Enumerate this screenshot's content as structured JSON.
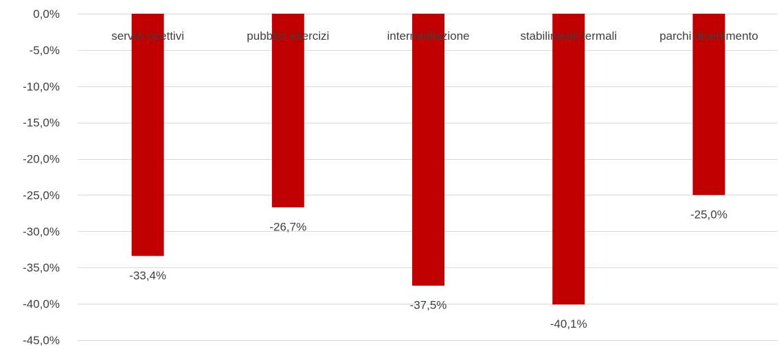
{
  "chart_data": {
    "type": "bar",
    "title": "",
    "xlabel": "",
    "ylabel": "",
    "categories": [
      "servizi ricettivi",
      "pubblici esercizi",
      "intermediazione",
      "stabilimenti termali",
      "parchi divertimento"
    ],
    "values": [
      -33.4,
      -26.7,
      -37.5,
      -40.1,
      -25.0
    ],
    "data_labels": [
      "-33,4%",
      "-26,7%",
      "-37,5%",
      "-40,1%",
      "-25,0%"
    ],
    "ylim": [
      -45,
      0
    ],
    "yticks": [
      0,
      -5,
      -10,
      -15,
      -20,
      -25,
      -30,
      -35,
      -40,
      -45
    ],
    "ytick_labels": [
      "0,0%",
      "-5,0%",
      "-10,0%",
      "-15,0%",
      "-20,0%",
      "-25,0%",
      "-30,0%",
      "-35,0%",
      "-40,0%",
      "-45,0%"
    ],
    "grid": true,
    "legend": "none",
    "colors": {
      "bar": "#C00000",
      "grid": "#D9D9D9",
      "text": "#404040"
    }
  }
}
